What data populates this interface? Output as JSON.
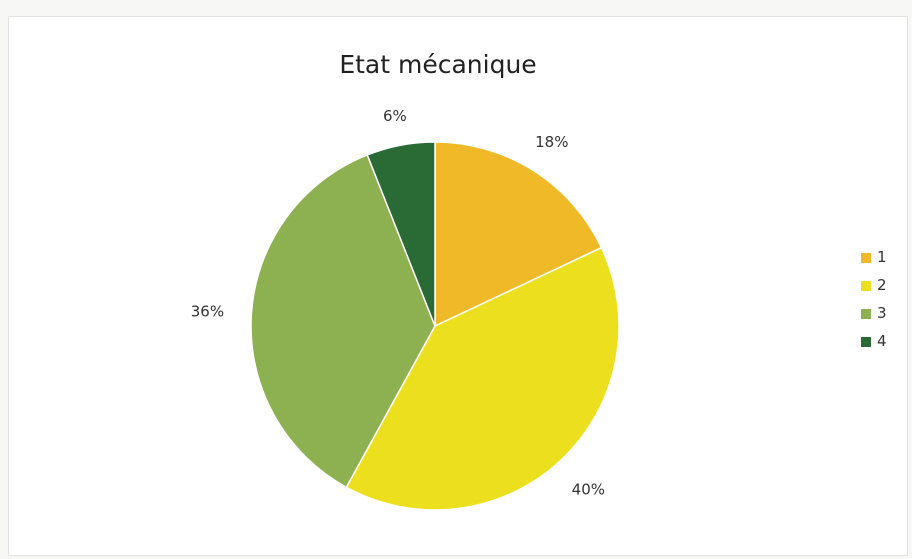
{
  "chart_data": {
    "type": "pie",
    "title": "Etat mécanique",
    "categories": [
      "1",
      "2",
      "3",
      "4"
    ],
    "values": [
      18,
      40,
      36,
      6
    ],
    "data_labels": [
      "18%",
      "40%",
      "36%",
      "6%"
    ],
    "colors": [
      "#f0b928",
      "#ece01e",
      "#8db050",
      "#2a6a34"
    ],
    "start_angle_deg": 0,
    "direction": "clockwise",
    "legend": "right"
  }
}
